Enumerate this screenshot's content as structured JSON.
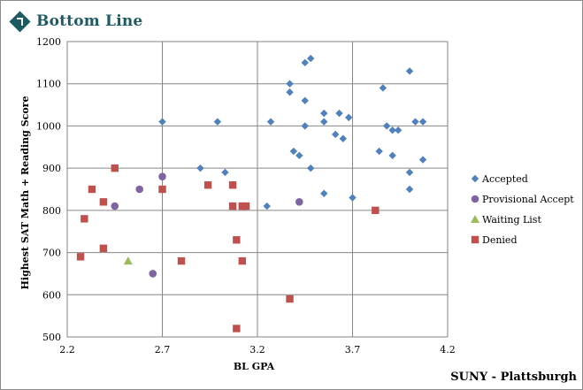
{
  "brand": {
    "name": "Bottom Line",
    "accent": "#1d5b63"
  },
  "footer_label": "SUNY - Plattsburgh",
  "chart_data": {
    "type": "scatter",
    "title": "",
    "xlabel": "BL GPA",
    "ylabel": "Highest SAT Math + Reading Score",
    "xlim": [
      2.2,
      4.2
    ],
    "ylim": [
      500,
      1200
    ],
    "xticks": [
      2.2,
      2.7,
      3.2,
      3.7,
      4.2
    ],
    "xtick_labels": [
      "2.2",
      "2.7",
      "3.2",
      "3.7",
      "4.2"
    ],
    "yticks": [
      500,
      600,
      700,
      800,
      900,
      1000,
      1100,
      1200
    ],
    "ytick_labels": [
      "500",
      "600",
      "700",
      "800",
      "900",
      "1000",
      "1100",
      "1200"
    ],
    "grid": true,
    "legend_position": "right",
    "series": [
      {
        "name": "Accepted",
        "marker": "diamond",
        "color": "#4f81bd",
        "points": [
          [
            2.7,
            1010
          ],
          [
            2.99,
            1010
          ],
          [
            2.9,
            900
          ],
          [
            3.03,
            890
          ],
          [
            3.25,
            810
          ],
          [
            3.27,
            1010
          ],
          [
            3.37,
            1100
          ],
          [
            3.37,
            1080
          ],
          [
            3.39,
            940
          ],
          [
            3.42,
            930
          ],
          [
            3.45,
            1150
          ],
          [
            3.48,
            1160
          ],
          [
            3.45,
            1060
          ],
          [
            3.45,
            1000
          ],
          [
            3.48,
            900
          ],
          [
            3.55,
            1030
          ],
          [
            3.55,
            1010
          ],
          [
            3.55,
            840
          ],
          [
            3.61,
            980
          ],
          [
            3.63,
            1030
          ],
          [
            3.65,
            970
          ],
          [
            3.68,
            1020
          ],
          [
            3.7,
            830
          ],
          [
            3.84,
            940
          ],
          [
            3.86,
            1090
          ],
          [
            3.88,
            1000
          ],
          [
            3.91,
            990
          ],
          [
            3.91,
            930
          ],
          [
            3.94,
            990
          ],
          [
            4.0,
            1130
          ],
          [
            4.0,
            890
          ],
          [
            4.0,
            850
          ],
          [
            4.03,
            1010
          ],
          [
            4.07,
            1010
          ],
          [
            4.07,
            920
          ]
        ]
      },
      {
        "name": "Provisional Accept",
        "marker": "circle",
        "color": "#8064a2",
        "points": [
          [
            2.45,
            810
          ],
          [
            2.58,
            850
          ],
          [
            2.65,
            650
          ],
          [
            2.7,
            880
          ],
          [
            3.42,
            820
          ]
        ]
      },
      {
        "name": "Waiting List",
        "marker": "triangle",
        "color": "#9bbb59",
        "points": [
          [
            2.52,
            680
          ]
        ]
      },
      {
        "name": "Denied",
        "marker": "square",
        "color": "#c0504d",
        "points": [
          [
            2.27,
            690
          ],
          [
            2.29,
            780
          ],
          [
            2.33,
            850
          ],
          [
            2.39,
            820
          ],
          [
            2.39,
            710
          ],
          [
            2.45,
            900
          ],
          [
            2.7,
            850
          ],
          [
            2.8,
            680
          ],
          [
            2.94,
            860
          ],
          [
            3.07,
            860
          ],
          [
            3.07,
            810
          ],
          [
            3.09,
            730
          ],
          [
            3.09,
            520
          ],
          [
            3.12,
            810
          ],
          [
            3.14,
            810
          ],
          [
            3.12,
            680
          ],
          [
            3.37,
            590
          ],
          [
            3.82,
            800
          ]
        ]
      }
    ]
  }
}
